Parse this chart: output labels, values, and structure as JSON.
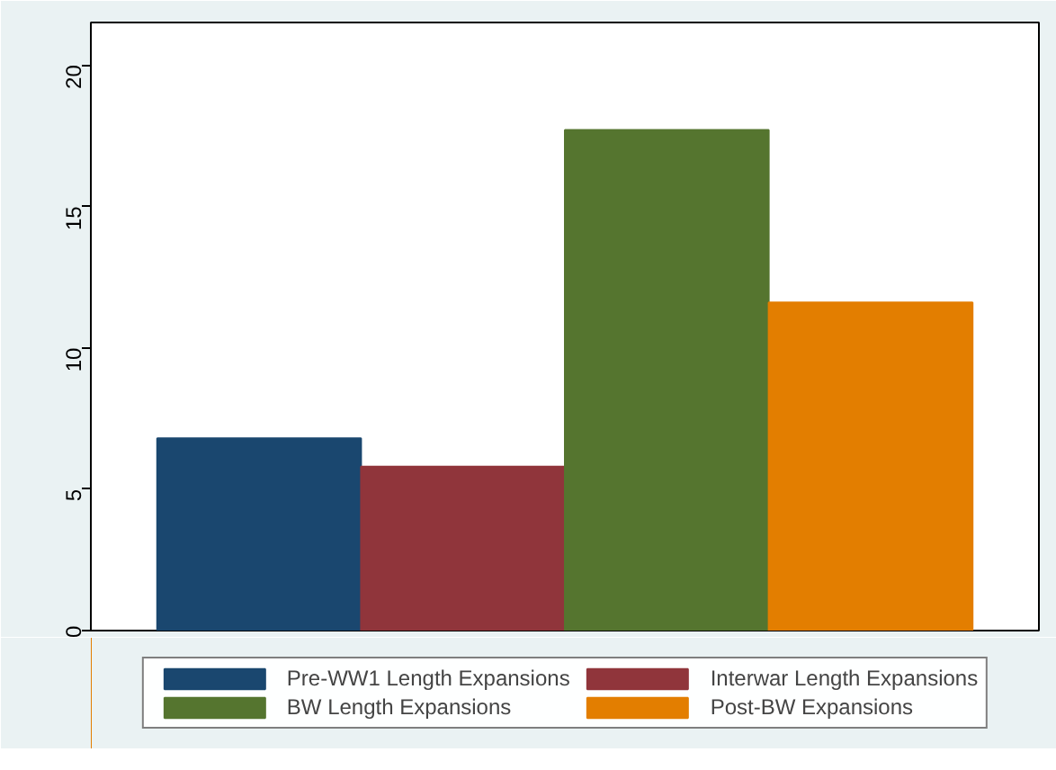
{
  "chart_data": {
    "type": "bar",
    "categories": [
      null
    ],
    "series": [
      {
        "name": "Pre-WW1 Length Expansions",
        "color": "#1a476f",
        "values": [
          6.8
        ]
      },
      {
        "name": "Interwar Length Expansions",
        "color": "#90353b",
        "values": [
          5.8
        ]
      },
      {
        "name": "BW Length Expansions",
        "color": "#55752f",
        "values": [
          17.7
        ]
      },
      {
        "name": "Post-BW Expansions",
        "color": "#e37e00",
        "values": [
          11.6
        ]
      }
    ],
    "ylim": [
      0,
      21.5
    ],
    "yticks": [
      0,
      5,
      10,
      15,
      20
    ],
    "grid": false,
    "legend": "bottom",
    "tick_labels": "y"
  }
}
